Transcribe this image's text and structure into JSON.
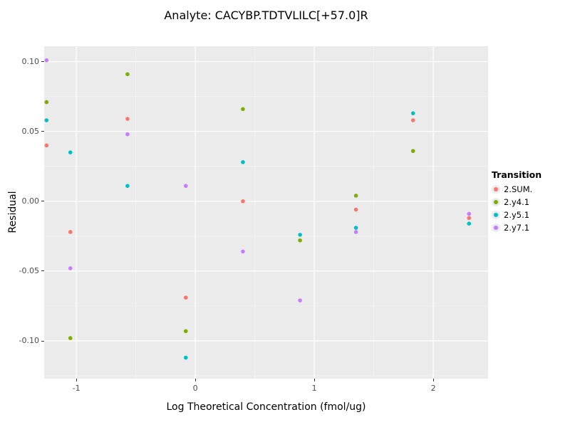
{
  "chart_data": {
    "type": "scatter",
    "title": "Analyte: CACYBP.TDTVLILC[+57.0]R",
    "xlabel": "Log Theoretical Concentration (fmol/ug)",
    "ylabel": "Residual",
    "xlim": [
      -1.27,
      2.46
    ],
    "ylim": [
      -0.127,
      0.111
    ],
    "x_ticks": [
      -1,
      0,
      1,
      2
    ],
    "x_tick_labels": [
      "-1",
      "0",
      "1",
      "2"
    ],
    "y_ticks": [
      0.1,
      0.05,
      0.0,
      -0.05,
      -0.1
    ],
    "y_tick_labels": [
      "0.10",
      "0.05",
      "0.00",
      "-0.05",
      "-0.10"
    ],
    "x_minor_ticks": [
      -0.5,
      0.5,
      1.5
    ],
    "y_minor_ticks": [
      0.075,
      0.025,
      -0.025,
      -0.075,
      -0.125
    ],
    "grid": true,
    "legend_position": "right",
    "legend_title": "Transition",
    "panel_background": "#EBEBEB",
    "grid_major_color": "#FFFFFF",
    "grid_minor_color": "#F5F5F5",
    "series": [
      {
        "name": "2.SUM.",
        "color": "#F8766D",
        "points": [
          [
            -1.25,
            0.04
          ],
          [
            -1.05,
            -0.022
          ],
          [
            -0.57,
            0.059
          ],
          [
            -0.08,
            -0.069
          ],
          [
            0.4,
            0.0
          ],
          [
            1.35,
            -0.006
          ],
          [
            1.83,
            0.058
          ],
          [
            2.3,
            -0.012
          ]
        ]
      },
      {
        "name": "2.y4.1",
        "color": "#7CAE00",
        "points": [
          [
            -1.25,
            0.071
          ],
          [
            -1.05,
            -0.098
          ],
          [
            -0.57,
            0.091
          ],
          [
            -0.08,
            -0.093
          ],
          [
            0.4,
            0.066
          ],
          [
            0.88,
            -0.028
          ],
          [
            1.35,
            0.004
          ],
          [
            1.83,
            0.036
          ]
        ]
      },
      {
        "name": "2.y5.1",
        "color": "#00BFC4",
        "points": [
          [
            -1.25,
            0.058
          ],
          [
            -1.05,
            0.035
          ],
          [
            -0.57,
            0.011
          ],
          [
            -0.08,
            -0.112
          ],
          [
            0.4,
            0.028
          ],
          [
            0.88,
            -0.024
          ],
          [
            1.35,
            -0.019
          ],
          [
            1.83,
            0.063
          ],
          [
            2.3,
            -0.016
          ]
        ]
      },
      {
        "name": "2.y7.1",
        "color": "#C77CFF",
        "points": [
          [
            -1.25,
            0.101
          ],
          [
            -1.05,
            -0.048
          ],
          [
            -0.57,
            0.048
          ],
          [
            -0.08,
            0.011
          ],
          [
            0.4,
            -0.036
          ],
          [
            0.88,
            -0.071
          ],
          [
            1.35,
            -0.022
          ],
          [
            2.3,
            -0.009
          ]
        ]
      }
    ]
  }
}
